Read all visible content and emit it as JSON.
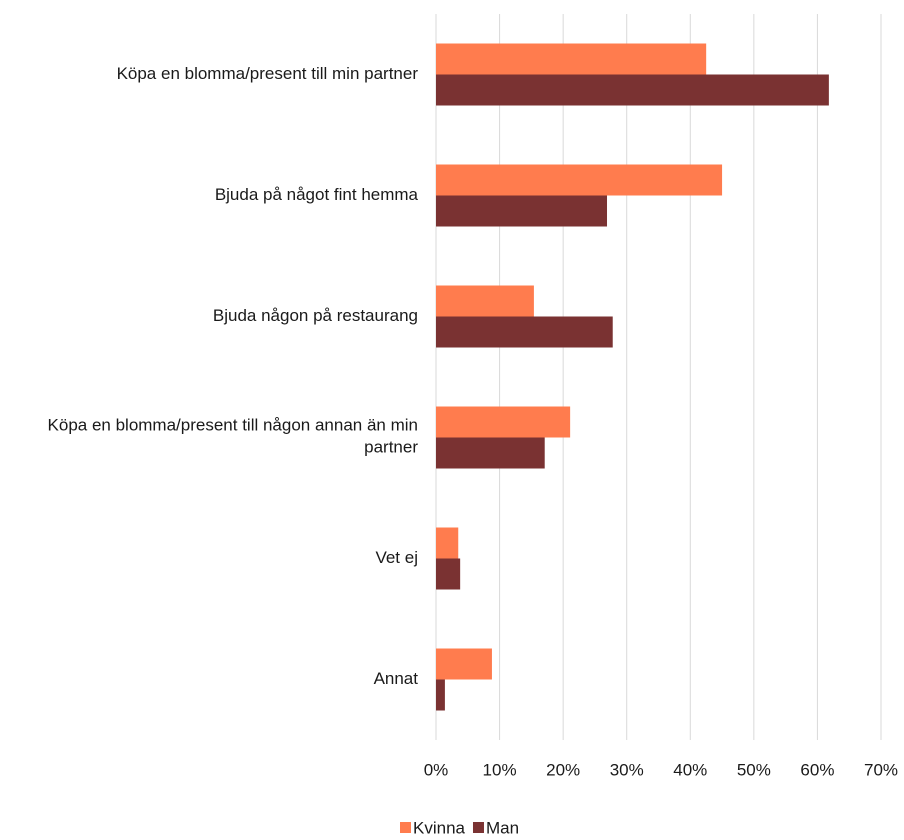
{
  "chart_data": {
    "type": "barh",
    "categories": [
      "Köpa en blomma/present till min partner",
      "Bjuda på något fint hemma",
      "Bjuda någon på restaurang",
      "Köpa en blomma/present till någon annan än min partner",
      "Vet ej",
      "Annat"
    ],
    "series": [
      {
        "name": "Kvinna",
        "color": "#ff7c4e",
        "values": [
          42.5,
          45.0,
          15.4,
          21.1,
          3.5,
          8.8
        ]
      },
      {
        "name": "Man",
        "color": "#7a3232",
        "values": [
          61.8,
          26.9,
          27.8,
          17.1,
          3.8,
          1.4
        ]
      }
    ],
    "xlim": [
      0,
      70
    ],
    "xticks": [
      {
        "value": 0,
        "label": "0%"
      },
      {
        "value": 10,
        "label": "10%"
      },
      {
        "value": 20,
        "label": "20%"
      },
      {
        "value": 30,
        "label": "30%"
      },
      {
        "value": 40,
        "label": "40%"
      },
      {
        "value": 50,
        "label": "50%"
      },
      {
        "value": 60,
        "label": "60%"
      },
      {
        "value": 70,
        "label": "70%"
      }
    ],
    "grid": true,
    "legend": "bottom"
  }
}
